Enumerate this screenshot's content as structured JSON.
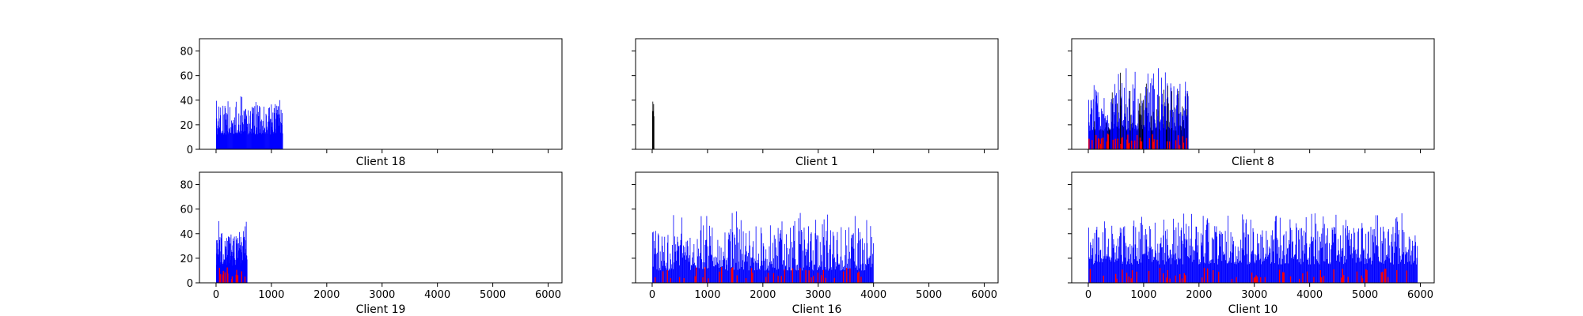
{
  "figure": {
    "panels": [
      {
        "label": "Client 18",
        "n": 1200,
        "min": 12,
        "max": 44,
        "red": 0.0,
        "black": 0.0
      },
      {
        "label": "Client 1",
        "n": 30,
        "min": 24,
        "max": 41,
        "red": 0.0,
        "black": 1.0
      },
      {
        "label": "Client 8",
        "n": 1800,
        "min": 15,
        "max": 67,
        "red": 0.1,
        "black": 0.25
      },
      {
        "label": "Client 19",
        "n": 560,
        "min": 14,
        "max": 51,
        "red": 0.06,
        "black": 0.0
      },
      {
        "label": "Client 16",
        "n": 4000,
        "min": 10,
        "max": 59,
        "red": 0.08,
        "black": 0.0
      },
      {
        "label": "Client 10",
        "n": 5950,
        "min": 15,
        "max": 57,
        "red": 0.07,
        "black": 0.0
      }
    ]
  },
  "chart_data": {
    "type": "bar",
    "layout": "2x3 subplots, shared axes",
    "xlim": [
      -300,
      6250
    ],
    "ylim": [
      0,
      90
    ],
    "x_ticks": [
      0,
      1000,
      2000,
      3000,
      4000,
      5000,
      6000
    ],
    "y_ticks": [
      0,
      20,
      40,
      60,
      80
    ],
    "x_tick_labels": [
      "0",
      "1000",
      "2000",
      "3000",
      "4000",
      "5000",
      "6000"
    ],
    "y_tick_labels": [
      "0",
      "20",
      "40",
      "60",
      "80"
    ],
    "bar_colors": {
      "main": "#0000ff",
      "secondary": "#ff0000",
      "other": "#000000"
    },
    "grid": false
  }
}
